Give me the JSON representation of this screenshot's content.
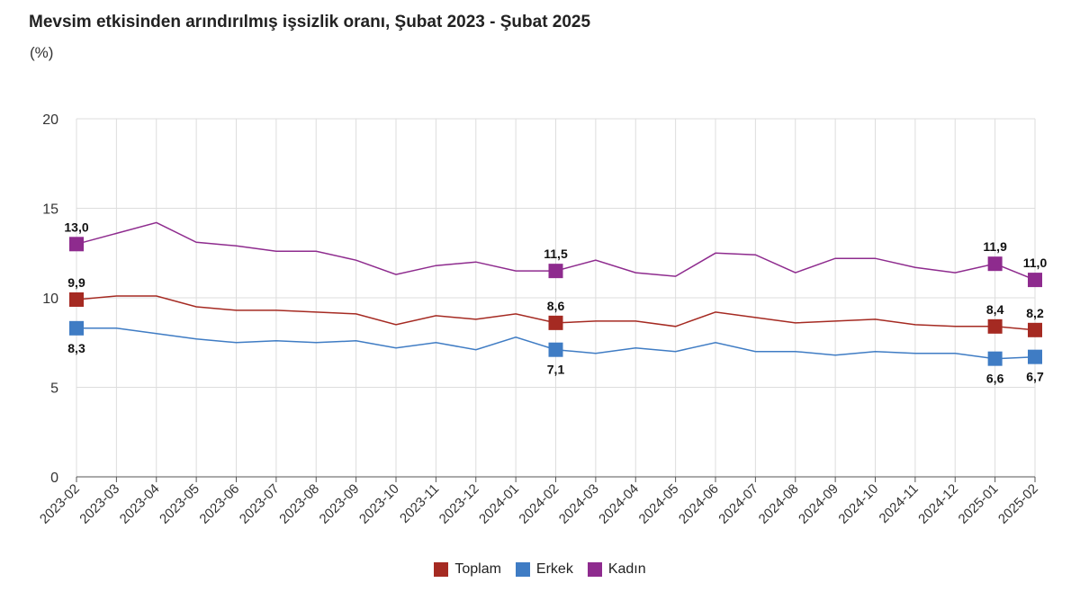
{
  "chart_data": {
    "type": "line",
    "title": "Mevsim etkisinden arındırılmış işsizlik oranı, Şubat 2023 - Şubat 2025",
    "unit_label": "(%)",
    "xlabel": "",
    "ylabel": "",
    "ylim": [
      0,
      20
    ],
    "yticks": [
      "0",
      "5",
      "10",
      "15",
      "20"
    ],
    "grid": true,
    "legend_position": "bottom",
    "categories": [
      "2023-02",
      "2023-03",
      "2023-04",
      "2023-05",
      "2023-06",
      "2023-07",
      "2023-08",
      "2023-09",
      "2023-10",
      "2023-11",
      "2023-12",
      "2024-01",
      "2024-02",
      "2024-03",
      "2024-04",
      "2024-05",
      "2024-06",
      "2024-07",
      "2024-08",
      "2024-09",
      "2024-10",
      "2024-11",
      "2024-12",
      "2025-01",
      "2025-02"
    ],
    "series": [
      {
        "name": "Toplam",
        "color": "#a52a22",
        "values": [
          9.9,
          10.1,
          10.1,
          9.5,
          9.3,
          9.3,
          9.2,
          9.1,
          8.5,
          9.0,
          8.8,
          9.1,
          8.6,
          8.7,
          8.7,
          8.4,
          9.2,
          8.9,
          8.6,
          8.7,
          8.8,
          8.5,
          8.4,
          8.4,
          8.2
        ],
        "labels": [
          {
            "index": 0,
            "text": "9,9"
          },
          {
            "index": 12,
            "text": "8,6"
          },
          {
            "index": 23,
            "text": "8,4"
          },
          {
            "index": 24,
            "text": "8,2"
          }
        ]
      },
      {
        "name": "Erkek",
        "color": "#3f7cc4",
        "values": [
          8.3,
          8.3,
          8.0,
          7.7,
          7.5,
          7.6,
          7.5,
          7.6,
          7.2,
          7.5,
          7.1,
          7.8,
          7.1,
          6.9,
          7.2,
          7.0,
          7.5,
          7.0,
          7.0,
          6.8,
          7.0,
          6.9,
          6.9,
          6.6,
          6.7
        ],
        "labels": [
          {
            "index": 0,
            "text": "8,3"
          },
          {
            "index": 12,
            "text": "7,1"
          },
          {
            "index": 23,
            "text": "6,6"
          },
          {
            "index": 24,
            "text": "6,7"
          }
        ]
      },
      {
        "name": "Kadın",
        "color": "#8e2b8e",
        "values": [
          13.0,
          13.6,
          14.2,
          13.1,
          12.9,
          12.6,
          12.6,
          12.1,
          11.3,
          11.8,
          12.0,
          11.5,
          11.5,
          12.1,
          11.4,
          11.2,
          12.5,
          12.4,
          11.4,
          12.2,
          12.2,
          11.7,
          11.4,
          11.9,
          11.0
        ],
        "labels": [
          {
            "index": 0,
            "text": "13,0"
          },
          {
            "index": 12,
            "text": "11,5"
          },
          {
            "index": 23,
            "text": "11,9"
          },
          {
            "index": 24,
            "text": "11,0"
          }
        ]
      }
    ],
    "axis_color": "#555555",
    "grid_color": "#dddddd"
  }
}
